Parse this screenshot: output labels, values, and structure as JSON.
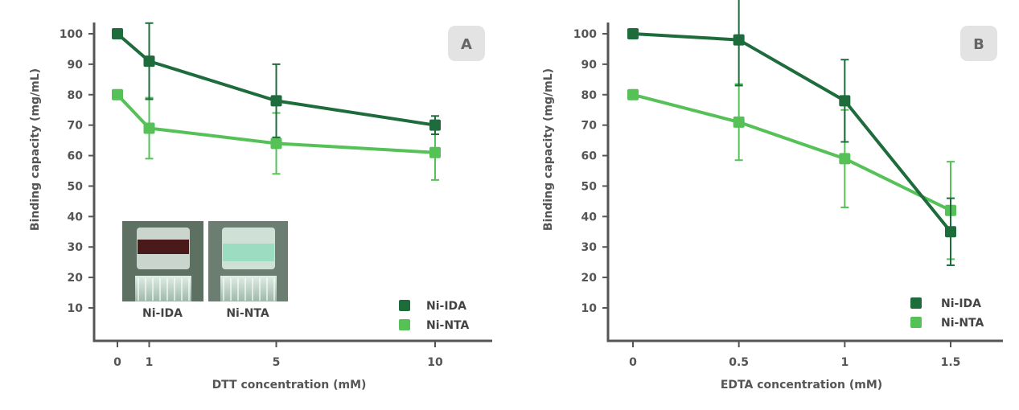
{
  "chart_data": [
    {
      "type": "line",
      "panel_label": "A",
      "xlabel": "DTT concentration (mM)",
      "ylabel": "Binding capacity (mg/mL)",
      "x": [
        0,
        1,
        5,
        10
      ],
      "x_ticks": [
        "0",
        "1",
        "5",
        "10"
      ],
      "xlim": [
        0,
        11
      ],
      "ylim": [
        0,
        102
      ],
      "y_ticks": [
        10,
        20,
        30,
        40,
        50,
        60,
        70,
        80,
        90,
        100
      ],
      "grid": false,
      "legend_position": "bottom-right",
      "series": [
        {
          "name": "Ni-IDA",
          "color": "#1e6b3c",
          "values": [
            100,
            91,
            78,
            70
          ],
          "errors": [
            1,
            12.5,
            12,
            3
          ]
        },
        {
          "name": "Ni-NTA",
          "color": "#55c157",
          "values": [
            80,
            69,
            64,
            61
          ],
          "errors": [
            1,
            10,
            10,
            9
          ]
        }
      ],
      "inset": {
        "labels": [
          "Ni-IDA",
          "Ni-NTA"
        ]
      }
    },
    {
      "type": "line",
      "panel_label": "B",
      "xlabel": "EDTA concentration (mM)",
      "ylabel": "Binding capacity (mg/mL)",
      "x": [
        0,
        0.5,
        1,
        1.5
      ],
      "x_ticks": [
        "0",
        "0.5",
        "1",
        "1.5"
      ],
      "xlim": [
        0,
        1.75
      ],
      "ylim": [
        0,
        102
      ],
      "y_ticks": [
        10,
        20,
        30,
        40,
        50,
        60,
        70,
        80,
        90,
        100
      ],
      "grid": false,
      "legend_position": "bottom-right",
      "series": [
        {
          "name": "Ni-IDA",
          "color": "#1e6b3c",
          "values": [
            100,
            98,
            78,
            35
          ],
          "errors": [
            1,
            15,
            13.5,
            11
          ]
        },
        {
          "name": "Ni-NTA",
          "color": "#55c157",
          "values": [
            80,
            71,
            59,
            42
          ],
          "errors": [
            1,
            12.5,
            16,
            16
          ]
        }
      ]
    }
  ]
}
